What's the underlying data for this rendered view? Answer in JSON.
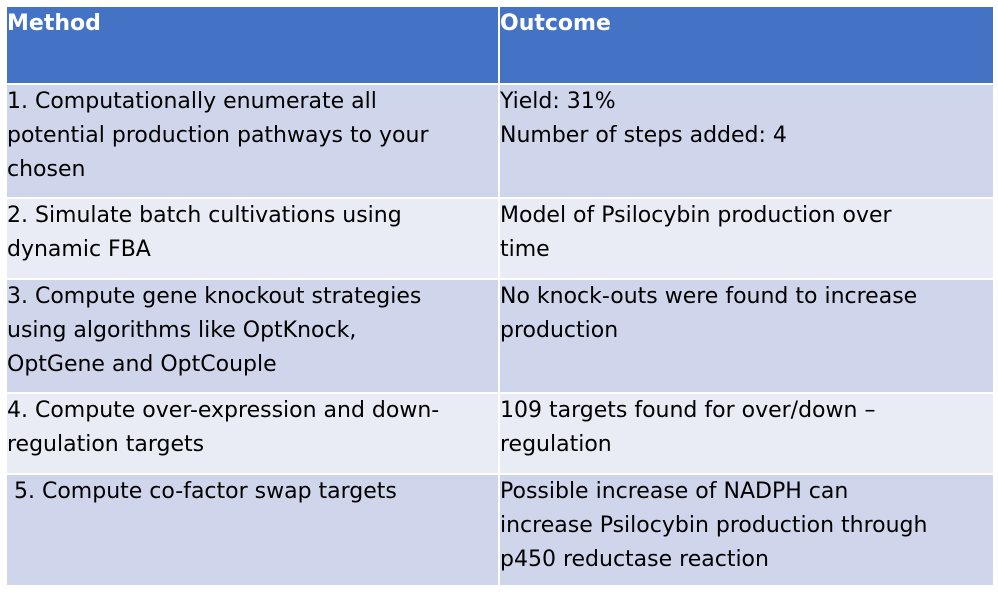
{
  "header": {
    "method": "Method",
    "outcome": "Outcome"
  },
  "rows": [
    {
      "method": [
        "1. Computationally enumerate all",
        "potential production pathways to your",
        "chosen"
      ],
      "outcome": [
        "Yield: 31%",
        "Number of steps added: 4"
      ]
    },
    {
      "method": [
        "2. Simulate batch cultivations using",
        "dynamic FBA"
      ],
      "outcome": [
        "Model of Psilocybin production over",
        "time"
      ]
    },
    {
      "method": [
        "3. Compute gene knockout strategies",
        "using algorithms like OptKnock,",
        "OptGene and OptCouple"
      ],
      "outcome": [
        "No knock-outs were found to increase",
        "production"
      ]
    },
    {
      "method": [
        "4. Compute over-expression and down-",
        "regulation targets"
      ],
      "outcome": [
        "109 targets found for over/down –",
        "regulation"
      ]
    },
    {
      "method": [
        " 5. Compute co-factor swap targets"
      ],
      "outcome": [
        "Possible increase of NADPH can",
        "increase Psilocybin production through",
        "p450 reductase reaction"
      ]
    }
  ],
  "colors": {
    "header_bg": "#4472c4",
    "row_odd_bg": "#cfd5ea",
    "row_even_bg": "#e9ebf5",
    "header_text": "#ffffff"
  }
}
